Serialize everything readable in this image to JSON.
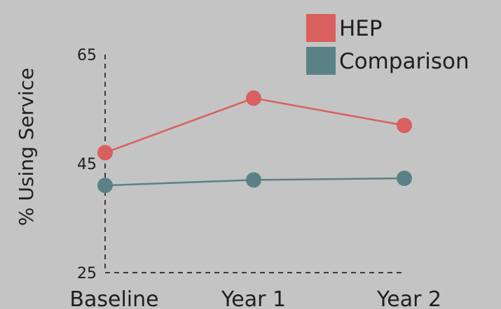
{
  "chart_data": {
    "type": "line",
    "categories": [
      "Baseline",
      "Year 1",
      "Year 2"
    ],
    "series": [
      {
        "name": "HEP",
        "values": [
          47,
          57,
          52
        ],
        "color": "#d9605f"
      },
      {
        "name": "Comparison",
        "values": [
          41,
          42,
          42.3
        ],
        "color": "#5a8286"
      }
    ],
    "ylabel": "% Using Service",
    "xlabel": "",
    "ylim": [
      25,
      65
    ],
    "yticks": [
      25,
      45,
      65
    ],
    "grid": false,
    "legend_position": "top-right",
    "axis_style": "dashed"
  }
}
